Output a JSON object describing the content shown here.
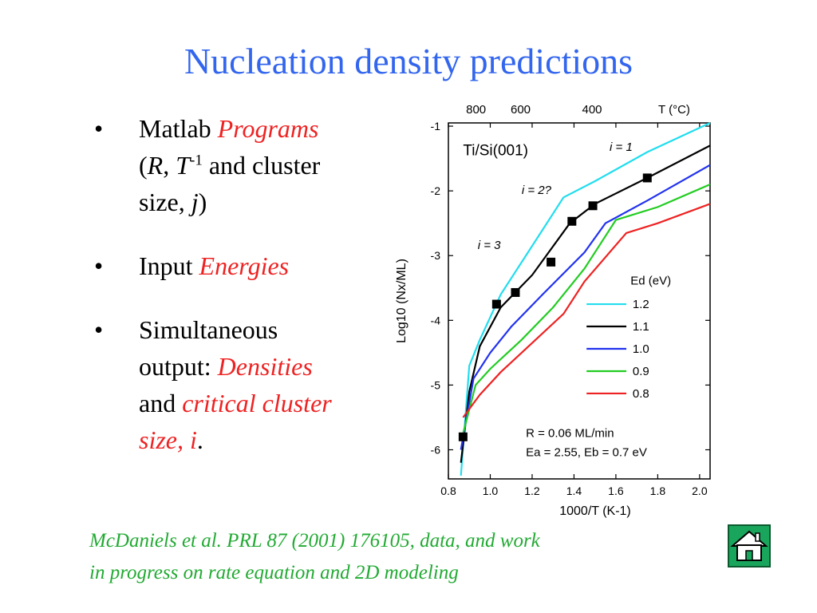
{
  "slide": {
    "title": "Nucleation density predictions",
    "bullets": [
      {
        "pre": "Matlab ",
        "em": "Programs",
        "l2a": "(",
        "R": "R",
        "comma": ", ",
        "T": "T",
        "sup": "-1",
        "l2b": " and cluster",
        "l3a": "size, ",
        "j": "j",
        "l3b": ")"
      },
      {
        "pre": "Input ",
        "em": "Energies"
      },
      {
        "l1": "Simultaneous",
        "l2": "output: ",
        "em1": "Densities",
        "l3": "and ",
        "em2": "critical cluster",
        "em3": "size, i",
        "end": "."
      }
    ],
    "citation": {
      "line1": "McDaniels et al. PRL 87 (2001) 176105, data, and work",
      "line2": "in progress on rate equation and 2D modeling"
    },
    "home_icon": "home-icon"
  },
  "chart_data": {
    "type": "line",
    "top_axis_label": "T (°C)",
    "top_ticks": [
      "800",
      "600",
      "400"
    ],
    "xlabel": "1000/T (K-1)",
    "ylabel": "Log10 (Nx/ML)",
    "xlim": [
      0.8,
      2.05
    ],
    "ylim": [
      -6.45,
      -0.95
    ],
    "x_ticks": [
      "0.8",
      "1.0",
      "1.2",
      "1.4",
      "1.6",
      "1.8",
      "2.0"
    ],
    "y_ticks": [
      "-1",
      "-2",
      "-3",
      "-4",
      "-5",
      "-6"
    ],
    "annotations": {
      "system": "Ti/Si(001)",
      "i1": "i = 1",
      "i2": "i = 2?",
      "i3": "i = 3",
      "rate": "R = 0.06 ML/min",
      "energies": "Ea = 2.55, Eb = 0.7 eV"
    },
    "legend": {
      "title": "Ed (eV)",
      "placement": "right"
    },
    "series": [
      {
        "name": "1.2",
        "color": "#22ddee",
        "x": [
          0.86,
          0.9,
          0.95,
          1.05,
          1.2,
          1.35,
          1.5,
          1.75,
          2.05
        ],
        "y": [
          -6.4,
          -4.7,
          -4.3,
          -3.6,
          -2.85,
          -2.1,
          -1.85,
          -1.4,
          -0.95
        ]
      },
      {
        "name": "1.1",
        "color": "#000000",
        "x": [
          0.86,
          0.9,
          0.95,
          1.05,
          1.2,
          1.38,
          1.5,
          1.75,
          2.05
        ],
        "y": [
          -6.2,
          -5.1,
          -4.4,
          -3.8,
          -3.3,
          -2.5,
          -2.2,
          -1.8,
          -1.3
        ]
      },
      {
        "name": "1.0",
        "color": "#2233ee",
        "x": [
          0.86,
          0.92,
          1.0,
          1.1,
          1.25,
          1.45,
          1.55,
          1.75,
          2.05
        ],
        "y": [
          -6.0,
          -4.9,
          -4.5,
          -4.1,
          -3.6,
          -2.95,
          -2.5,
          -2.15,
          -1.6
        ]
      },
      {
        "name": "0.9",
        "color": "#22cc22",
        "x": [
          0.87,
          0.93,
          1.0,
          1.15,
          1.3,
          1.45,
          1.6,
          1.8,
          2.05
        ],
        "y": [
          -5.75,
          -5.0,
          -4.75,
          -4.3,
          -3.8,
          -3.2,
          -2.45,
          -2.25,
          -1.9
        ]
      },
      {
        "name": "0.8",
        "color": "#ee2222",
        "x": [
          0.87,
          0.95,
          1.05,
          1.2,
          1.35,
          1.45,
          1.65,
          1.8,
          2.05
        ],
        "y": [
          -5.5,
          -5.15,
          -4.8,
          -4.35,
          -3.9,
          -3.4,
          -2.65,
          -2.5,
          -2.2
        ]
      }
    ],
    "data_points": {
      "x": [
        0.87,
        1.03,
        1.12,
        1.29,
        1.39,
        1.49,
        1.75
      ],
      "y": [
        -5.8,
        -3.75,
        -3.57,
        -3.1,
        -2.47,
        -2.23,
        -1.8
      ]
    }
  }
}
